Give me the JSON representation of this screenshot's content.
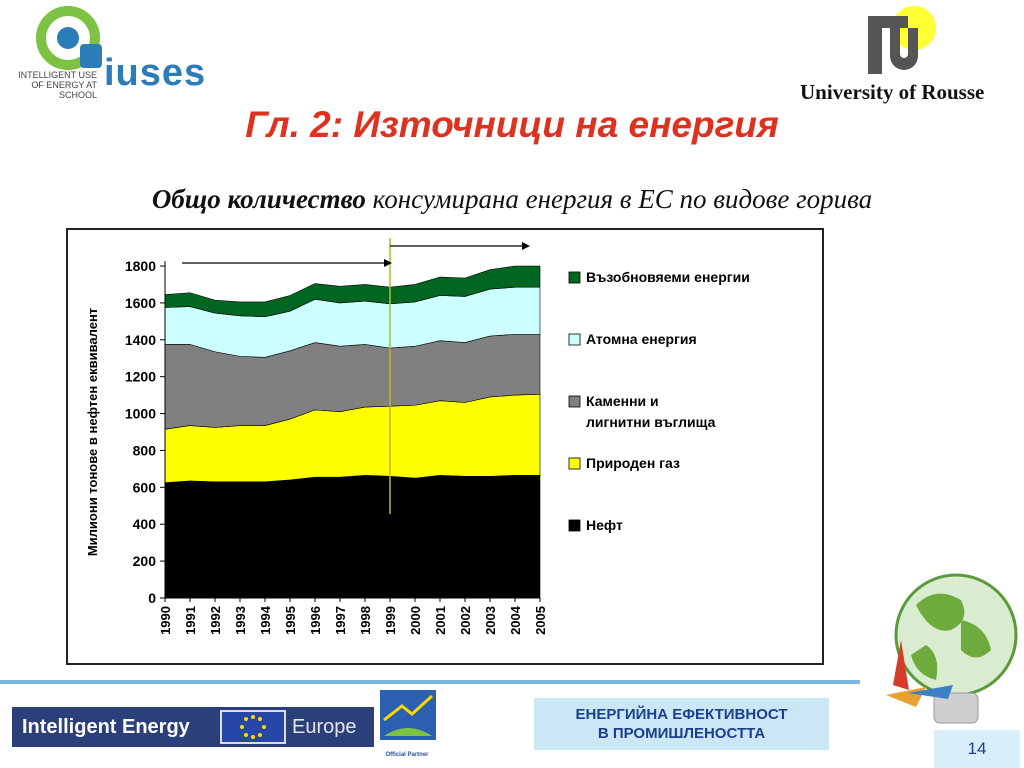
{
  "slide": {
    "title": "Гл. 2: Източници на енергия",
    "subtitle_bold": "Общо количество",
    "subtitle_rest": " консумирана енергия в ЕС по видове горива",
    "page_number": "14"
  },
  "logos": {
    "iuses_text": "iuses",
    "iuses_tagline_1": "INTELLIGENT USE",
    "iuses_tagline_2": "OF ENERGY AT SCHOOL",
    "university": "University of Rousse",
    "ie_left": "Intelligent Energy",
    "ie_right": "Europe",
    "official_partner": "Official Partner"
  },
  "footer": {
    "box_line1": "ЕНЕРГИЙНА ЕФЕКТИВНОСТ",
    "box_line2": "В ПРОМИШЛЕНОСТТА"
  },
  "colors": {
    "title": "#e0301e",
    "oil": "#000000",
    "gas": "#ffff00",
    "coal": "#808080",
    "nuclear": "#ccffff",
    "renewable": "#006622"
  },
  "chart_data": {
    "type": "area",
    "stacked": true,
    "ylabel": "Милиони тонове в нефтен еквивалент",
    "xlabel": "",
    "ylim": [
      0,
      1800
    ],
    "yticks": [
      0,
      200,
      400,
      600,
      800,
      1000,
      1200,
      1400,
      1600,
      1800
    ],
    "x": [
      "1990",
      "1991",
      "1992",
      "1993",
      "1994",
      "1995",
      "1996",
      "1997",
      "1998",
      "1999",
      "2000",
      "2001",
      "2002",
      "2003",
      "2004",
      "2005"
    ],
    "legend_position": "right",
    "marker_year": "1999",
    "series": [
      {
        "name": "Нефт",
        "color": "#000000",
        "values": [
          625,
          635,
          630,
          630,
          630,
          640,
          655,
          655,
          665,
          660,
          650,
          665,
          660,
          660,
          665,
          665
        ]
      },
      {
        "name": "Природен газ",
        "color": "#ffff00",
        "values": [
          290,
          300,
          295,
          305,
          305,
          330,
          365,
          355,
          370,
          380,
          395,
          405,
          400,
          430,
          435,
          440
        ]
      },
      {
        "name": "Каменни и лигнитни въглища",
        "color": "#808080",
        "values": [
          460,
          440,
          410,
          375,
          370,
          370,
          365,
          355,
          340,
          315,
          320,
          325,
          325,
          330,
          330,
          325
        ]
      },
      {
        "name": "Атомна енергия",
        "color": "#ccffff",
        "values": [
          200,
          205,
          210,
          220,
          220,
          215,
          235,
          235,
          235,
          240,
          240,
          245,
          250,
          255,
          255,
          255
        ]
      },
      {
        "name": "Възобновяеми енергии",
        "color": "#006622",
        "values": [
          70,
          75,
          70,
          75,
          80,
          85,
          85,
          90,
          90,
          90,
          95,
          100,
          100,
          105,
          115,
          115
        ]
      }
    ]
  }
}
